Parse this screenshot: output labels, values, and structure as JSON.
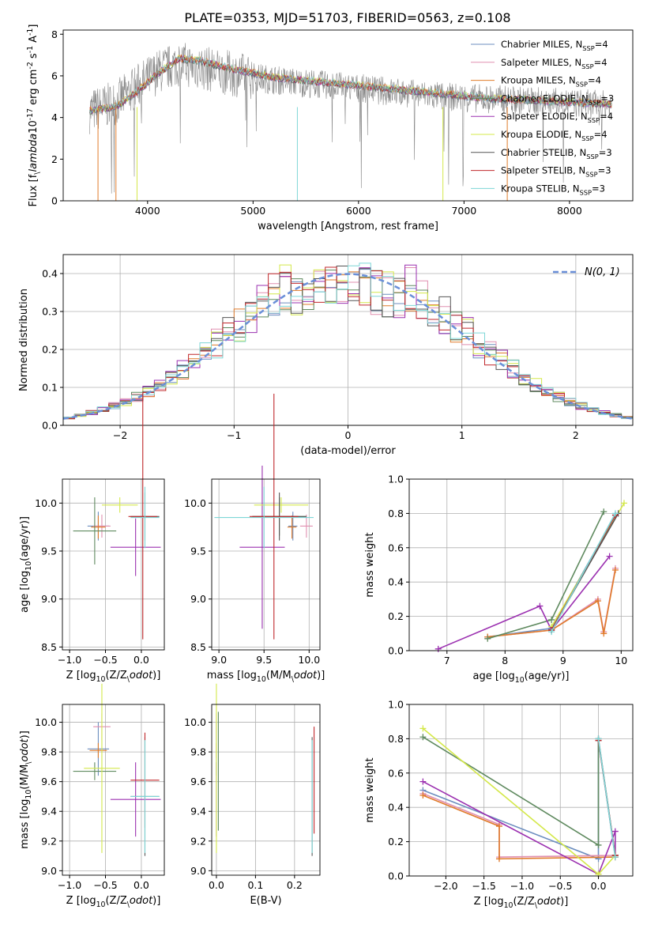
{
  "title": "PLATE=0353, MJD=51703, FIBERID=0563, z=0.108",
  "legend": [
    {
      "name": "Chabrier MILES, N$_{SSP}$=4",
      "color": "#6c8ebf"
    },
    {
      "name": "Salpeter MILES, N$_{SSP}$=4",
      "color": "#e08fb0"
    },
    {
      "name": "Kroupa MILES, N$_{SSP}$=4",
      "color": "#e07b2a"
    },
    {
      "name": "Chabrier ELODIE, N$_{SSP}$=3",
      "color": "#5f8a5f"
    },
    {
      "name": "Salpeter ELODIE, N$_{SSP}$=4",
      "color": "#9b30b0"
    },
    {
      "name": "Kroupa ELODIE, N$_{SSP}$=4",
      "color": "#d4e84a"
    },
    {
      "name": "Chabrier STELIB, N$_{SSP}$=3",
      "color": "#555555"
    },
    {
      "name": "Salpeter STELIB, N$_{SSP}$=3",
      "color": "#c0282c"
    },
    {
      "name": "Kroupa STELIB, N$_{SSP}$=3",
      "color": "#7ed6d6"
    }
  ],
  "chart_data": [
    {
      "id": "spectrum",
      "type": "line",
      "xlabel": "wavelength [Angstrom, rest frame]",
      "ylabel": "Flux [f$_\\lambda$10$^{-17}$ erg cm$^{-2}$ s$^{-1}$ A$^{-1}$]",
      "xlim": [
        3200,
        8600
      ],
      "ylim": [
        0,
        8.2
      ],
      "xticks": [
        4000,
        5000,
        6000,
        7000,
        8000
      ],
      "yticks": [
        0,
        2,
        4,
        6,
        8
      ],
      "model_continuum": {
        "x": [
          3450,
          3700,
          3900,
          4100,
          4300,
          4500,
          4800,
          5200,
          5600,
          6000,
          6400,
          6800,
          7200,
          7600,
          8000,
          8400
        ],
        "y": [
          4.3,
          4.5,
          5.2,
          6.1,
          6.8,
          6.7,
          6.3,
          5.9,
          5.7,
          5.5,
          5.3,
          5.1,
          4.9,
          4.8,
          4.7,
          4.6
        ]
      },
      "data_continuum": {
        "x": [
          3450,
          3700,
          3900,
          4100,
          4300,
          4500,
          4800,
          5200,
          5600,
          6000,
          6400,
          6800,
          7200,
          7600,
          8000,
          8400
        ],
        "y": [
          4.3,
          4.7,
          5.5,
          6.2,
          6.6,
          6.4,
          6.1,
          5.8,
          5.6,
          5.4,
          5.2,
          5.0,
          4.9,
          4.8,
          4.7,
          4.6
        ]
      }
    },
    {
      "id": "residuals",
      "type": "bar",
      "xlabel": "(data-model)/error",
      "ylabel": "Normed distribution",
      "xlim": [
        -2.5,
        2.5
      ],
      "ylim": [
        0,
        0.45
      ],
      "xticks": [
        -2,
        -1,
        0,
        1,
        2
      ],
      "yticks": [
        0.0,
        0.1,
        0.2,
        0.3,
        0.4
      ],
      "gaussian_label": "$\\mathcal{N}(0,1)$",
      "gaussian": {
        "mu": 0,
        "sigma": 1
      }
    },
    {
      "id": "age_vs_Z",
      "type": "scatter",
      "xlabel": "Z [log$_{10}$(Z/Z$_\\odot$)]",
      "ylabel": "age  [log$_{10}$(age/yr)]",
      "xlim": [
        -1.1,
        0.32
      ],
      "ylim": [
        8.47,
        10.25
      ],
      "xticks": [
        -1.0,
        -0.5,
        0.0
      ],
      "yticks": [
        8.5,
        9.0,
        9.5,
        10.0
      ],
      "points": [
        {
          "x": -0.6,
          "y": 9.76,
          "xe": 0.15,
          "ye": 0.15,
          "s": 0
        },
        {
          "x": -0.55,
          "y": 9.76,
          "xe": 0.12,
          "ye": 0.12,
          "s": 1
        },
        {
          "x": -0.6,
          "y": 9.75,
          "xe": 0.1,
          "ye": 0.12,
          "s": 2
        },
        {
          "x": -0.65,
          "y": 9.71,
          "xe": 0.3,
          "ye": 0.35,
          "s": 3
        },
        {
          "x": -0.08,
          "y": 9.54,
          "xe": 0.35,
          "ye": 0.3,
          "s": 4
        },
        {
          "x": -0.3,
          "y": 9.98,
          "xe": 0.25,
          "ye": 0.08,
          "s": 5
        },
        {
          "x": 0.05,
          "y": 9.86,
          "xe": 0.2,
          "ye": 0.25,
          "s": 6
        },
        {
          "x": 0.02,
          "y": 9.86,
          "xe": 0.2,
          "ye": 1.28,
          "s": 7
        },
        {
          "x": 0.05,
          "y": 9.85,
          "xe": 0.2,
          "ye": 0.32,
          "s": 8
        }
      ]
    },
    {
      "id": "age_vs_mass",
      "type": "scatter",
      "xlabel": "mass [log$_{10}$(M/M$_\\odot$)]",
      "ylabel": "",
      "xlim": [
        8.92,
        10.12
      ],
      "ylim": [
        8.47,
        10.25
      ],
      "xticks": [
        9.0,
        9.5,
        10.0
      ],
      "yticks": [
        8.5,
        9.0,
        9.5,
        10.0
      ],
      "points": [
        {
          "x": 9.82,
          "y": 9.76,
          "xe": 0.05,
          "ye": 0.15,
          "s": 0
        },
        {
          "x": 9.97,
          "y": 9.76,
          "xe": 0.07,
          "ye": 0.12,
          "s": 1
        },
        {
          "x": 9.81,
          "y": 9.75,
          "xe": 0.05,
          "ye": 0.12,
          "s": 2
        },
        {
          "x": 9.67,
          "y": 9.86,
          "xe": 0.3,
          "ye": 0.2,
          "s": 3
        },
        {
          "x": 9.48,
          "y": 9.54,
          "xe": 0.25,
          "ye": 0.85,
          "s": 4
        },
        {
          "x": 9.69,
          "y": 9.98,
          "xe": 0.3,
          "ye": 0.08,
          "s": 5
        },
        {
          "x": 9.67,
          "y": 9.86,
          "xe": 0.3,
          "ye": 0.25,
          "s": 6
        },
        {
          "x": 9.61,
          "y": 9.86,
          "xe": 0.27,
          "ye": 1.28,
          "s": 7
        },
        {
          "x": 9.5,
          "y": 9.85,
          "xe": 0.55,
          "ye": 0.32,
          "s": 8
        }
      ]
    },
    {
      "id": "weight_vs_age",
      "type": "line",
      "xlabel": "age  [log$_{10}$(age/yr)]",
      "ylabel": "mass weight",
      "xlim": [
        6.35,
        10.2
      ],
      "ylim": [
        0,
        1.0
      ],
      "xticks": [
        7,
        8,
        9,
        10
      ],
      "yticks": [
        0.0,
        0.2,
        0.4,
        0.6,
        0.8,
        1.0
      ],
      "series": [
        {
          "s": 0,
          "x": [
            7.7,
            8.8,
            9.9
          ],
          "y": [
            0.08,
            0.13,
            0.79
          ]
        },
        {
          "s": 1,
          "x": [
            7.7,
            8.8,
            9.6,
            9.7,
            9.9
          ],
          "y": [
            0.08,
            0.12,
            0.3,
            0.11,
            0.48
          ]
        },
        {
          "s": 2,
          "x": [
            7.7,
            8.8,
            9.6,
            9.7,
            9.9
          ],
          "y": [
            0.08,
            0.12,
            0.29,
            0.1,
            0.47
          ]
        },
        {
          "s": 3,
          "x": [
            7.7,
            8.8,
            9.7
          ],
          "y": [
            0.07,
            0.18,
            0.81
          ]
        },
        {
          "s": 4,
          "x": [
            6.85,
            8.6,
            8.8,
            9.8
          ],
          "y": [
            0.01,
            0.26,
            0.12,
            0.55
          ]
        },
        {
          "s": 5,
          "x": [
            8.8,
            10.05
          ],
          "y": [
            0.14,
            0.86
          ]
        },
        {
          "s": 6,
          "x": [
            8.8,
            9.95
          ],
          "y": [
            0.12,
            0.8
          ]
        },
        {
          "s": 7,
          "x": [
            8.8,
            9.9
          ],
          "y": [
            0.12,
            0.79
          ]
        },
        {
          "s": 8,
          "x": [
            8.8,
            9.9
          ],
          "y": [
            0.11,
            0.8
          ]
        }
      ]
    },
    {
      "id": "mass_vs_Z",
      "type": "scatter",
      "xlabel": "Z [log$_{10}$(Z/Z$_\\odot$)]",
      "ylabel": "mass [log$_{10}$(M/M$_\\odot$)]",
      "xlim": [
        -1.1,
        0.32
      ],
      "ylim": [
        8.97,
        10.12
      ],
      "xticks": [
        -1.0,
        -0.5,
        0.0
      ],
      "yticks": [
        9.0,
        9.2,
        9.4,
        9.6,
        9.8,
        10.0
      ],
      "points": [
        {
          "x": -0.6,
          "y": 9.82,
          "xe": 0.15,
          "ye": 0.18,
          "s": 0
        },
        {
          "x": -0.55,
          "y": 9.97,
          "xe": 0.12,
          "ye": 0.09,
          "s": 1
        },
        {
          "x": -0.6,
          "y": 9.81,
          "xe": 0.12,
          "ye": 0.05,
          "s": 2
        },
        {
          "x": -0.65,
          "y": 9.67,
          "xe": 0.3,
          "ye": 0.06,
          "s": 3
        },
        {
          "x": -0.08,
          "y": 9.48,
          "xe": 0.35,
          "ye": 0.25,
          "s": 4
        },
        {
          "x": -0.55,
          "y": 9.69,
          "xe": 0.25,
          "ye": 0.57,
          "s": 5
        },
        {
          "x": 0.05,
          "y": 9.5,
          "xe": 0.2,
          "ye": 0.4,
          "s": 6
        },
        {
          "x": 0.05,
          "y": 9.61,
          "xe": 0.2,
          "ye": 0.32,
          "s": 7
        },
        {
          "x": 0.05,
          "y": 9.5,
          "xe": 0.2,
          "ye": 0.38,
          "s": 8
        }
      ]
    },
    {
      "id": "mass_vs_EBV",
      "type": "scatter",
      "xlabel": "E(B-V)",
      "ylabel": "",
      "xlim": [
        -0.012,
        0.265
      ],
      "ylim": [
        8.97,
        10.12
      ],
      "xticks": [
        0.0,
        0.1,
        0.2
      ],
      "yticks": [
        9.0,
        9.2,
        9.4,
        9.6,
        9.8,
        10.0
      ],
      "points": [
        {
          "x": 0.0,
          "y": 9.82,
          "xe": 0.0,
          "ye": 0.18,
          "s": 0
        },
        {
          "x": 0.0,
          "y": 9.97,
          "xe": 0.0,
          "ye": 0.09,
          "s": 1
        },
        {
          "x": 0.0,
          "y": 9.81,
          "xe": 0.0,
          "ye": 0.05,
          "s": 2
        },
        {
          "x": 0.005,
          "y": 9.67,
          "xe": 0.0,
          "ye": 0.4,
          "s": 3
        },
        {
          "x": 0.0,
          "y": 9.48,
          "xe": 0.0,
          "ye": 0.25,
          "s": 4
        },
        {
          "x": 0.0,
          "y": 9.69,
          "xe": 0.0,
          "ye": 0.57,
          "s": 5
        },
        {
          "x": 0.245,
          "y": 9.5,
          "xe": 0.0,
          "ye": 0.4,
          "s": 6
        },
        {
          "x": 0.25,
          "y": 9.61,
          "xe": 0.0,
          "ye": 0.36,
          "s": 7
        },
        {
          "x": 0.245,
          "y": 9.5,
          "xe": 0.0,
          "ye": 0.38,
          "s": 8
        }
      ]
    },
    {
      "id": "weight_vs_Z",
      "type": "line",
      "xlabel": "Z [log$_{10}$(Z/Z$_\\odot$)]",
      "ylabel": "mass weight",
      "xlim": [
        -2.48,
        0.45
      ],
      "ylim": [
        0,
        1.0
      ],
      "xticks": [
        -2.0,
        -1.5,
        -1.0,
        -0.5,
        0.0
      ],
      "yticks": [
        0.0,
        0.2,
        0.4,
        0.6,
        0.8,
        1.0
      ],
      "series": [
        {
          "s": 0,
          "x": [
            -2.3,
            0.0,
            0.0,
            0.22
          ],
          "y": [
            0.5,
            0.1,
            0.79,
            0.11
          ]
        },
        {
          "s": 1,
          "x": [
            -2.3,
            -1.3,
            -1.3,
            0.22,
            0.22
          ],
          "y": [
            0.48,
            0.3,
            0.11,
            0.12,
            0.12
          ]
        },
        {
          "s": 2,
          "x": [
            -2.3,
            -1.3,
            -1.3,
            0.22,
            0.22
          ],
          "y": [
            0.47,
            0.29,
            0.1,
            0.11,
            0.11
          ]
        },
        {
          "s": 3,
          "x": [
            -2.3,
            0.0,
            0.0
          ],
          "y": [
            0.81,
            0.18,
            0.79
          ]
        },
        {
          "s": 4,
          "x": [
            -2.3,
            0.0,
            0.22,
            0.22
          ],
          "y": [
            0.55,
            0.01,
            0.26,
            0.12
          ]
        },
        {
          "s": 5,
          "x": [
            -2.3,
            0.0,
            0.22
          ],
          "y": [
            0.86,
            0.01,
            0.12
          ]
        },
        {
          "s": 6,
          "x": [
            0.0,
            0.22
          ],
          "y": [
            0.8,
            0.12
          ]
        },
        {
          "s": 7,
          "x": [
            0.0,
            0.22
          ],
          "y": [
            0.79,
            0.12
          ]
        },
        {
          "s": 8,
          "x": [
            0.0,
            0.22
          ],
          "y": [
            0.8,
            0.11
          ]
        }
      ]
    }
  ]
}
